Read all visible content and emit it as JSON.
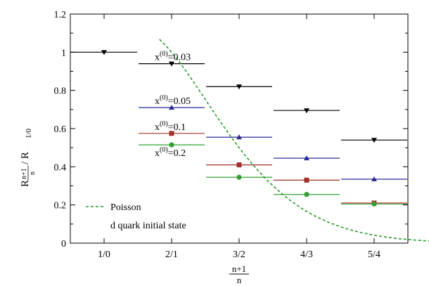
{
  "chart_data": {
    "type": "scatter",
    "title": "",
    "categories": [
      "1/0",
      "2/1",
      "3/2",
      "4/3",
      "5/4"
    ],
    "xlabel": {
      "numerator": "n+1",
      "denominator": "n"
    },
    "ylabel": {
      "R": "R",
      "sub_num": "n+1",
      "sub_den": "n",
      "rest": " / R",
      "rest_sub": "1/0"
    },
    "ylim": [
      0,
      1.2
    ],
    "yticks": [
      "0",
      "0.2",
      "0.4",
      "0.6",
      "0.8",
      "1",
      "1.2"
    ],
    "ytick_values": [
      0,
      0.2,
      0.4,
      0.6,
      0.8,
      1.0,
      1.2
    ],
    "series": [
      {
        "name": "x(0)=0.03",
        "label_main": "x",
        "label_sup": "(0)",
        "label_val": "=0.03",
        "color": "#000000",
        "marker": "triangle-down",
        "values": [
          1.0,
          0.94,
          0.82,
          0.695,
          0.54
        ]
      },
      {
        "name": "x(0)=0.05",
        "label_main": "x",
        "label_sup": "(0)",
        "label_val": "=0.05",
        "color": "#2a2a9a",
        "marker": "triangle-up",
        "values": [
          null,
          0.71,
          0.555,
          0.445,
          0.335
        ]
      },
      {
        "name": "x(0)=0.1",
        "label_main": "x",
        "label_sup": "(0)",
        "label_val": "=0.1",
        "color": "#a0302a",
        "marker": "square",
        "values": [
          null,
          0.575,
          0.41,
          0.33,
          0.21
        ]
      },
      {
        "name": "x(0)=0.2",
        "label_main": "x",
        "label_sup": "(0)",
        "label_val": "=0.2",
        "color": "#33a033",
        "marker": "circle",
        "values": [
          null,
          0.515,
          0.345,
          0.255,
          0.205
        ]
      }
    ],
    "curve": {
      "name": "Poisson",
      "color": "#2a9a2a",
      "style": "dashed",
      "x_start": 0.82,
      "x_end": 4.85,
      "formula": "1/Gamma(x+1)"
    },
    "legend_entry": "Poisson",
    "annotation": "d quark initial state"
  }
}
